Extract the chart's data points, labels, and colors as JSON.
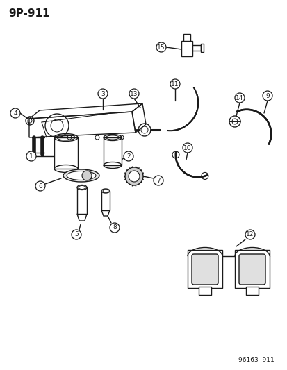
{
  "title": "9P-911",
  "footer": "96163  911",
  "bg_color": "#ffffff",
  "line_color": "#1a1a1a",
  "figsize": [
    4.14,
    5.33
  ],
  "dpi": 100
}
